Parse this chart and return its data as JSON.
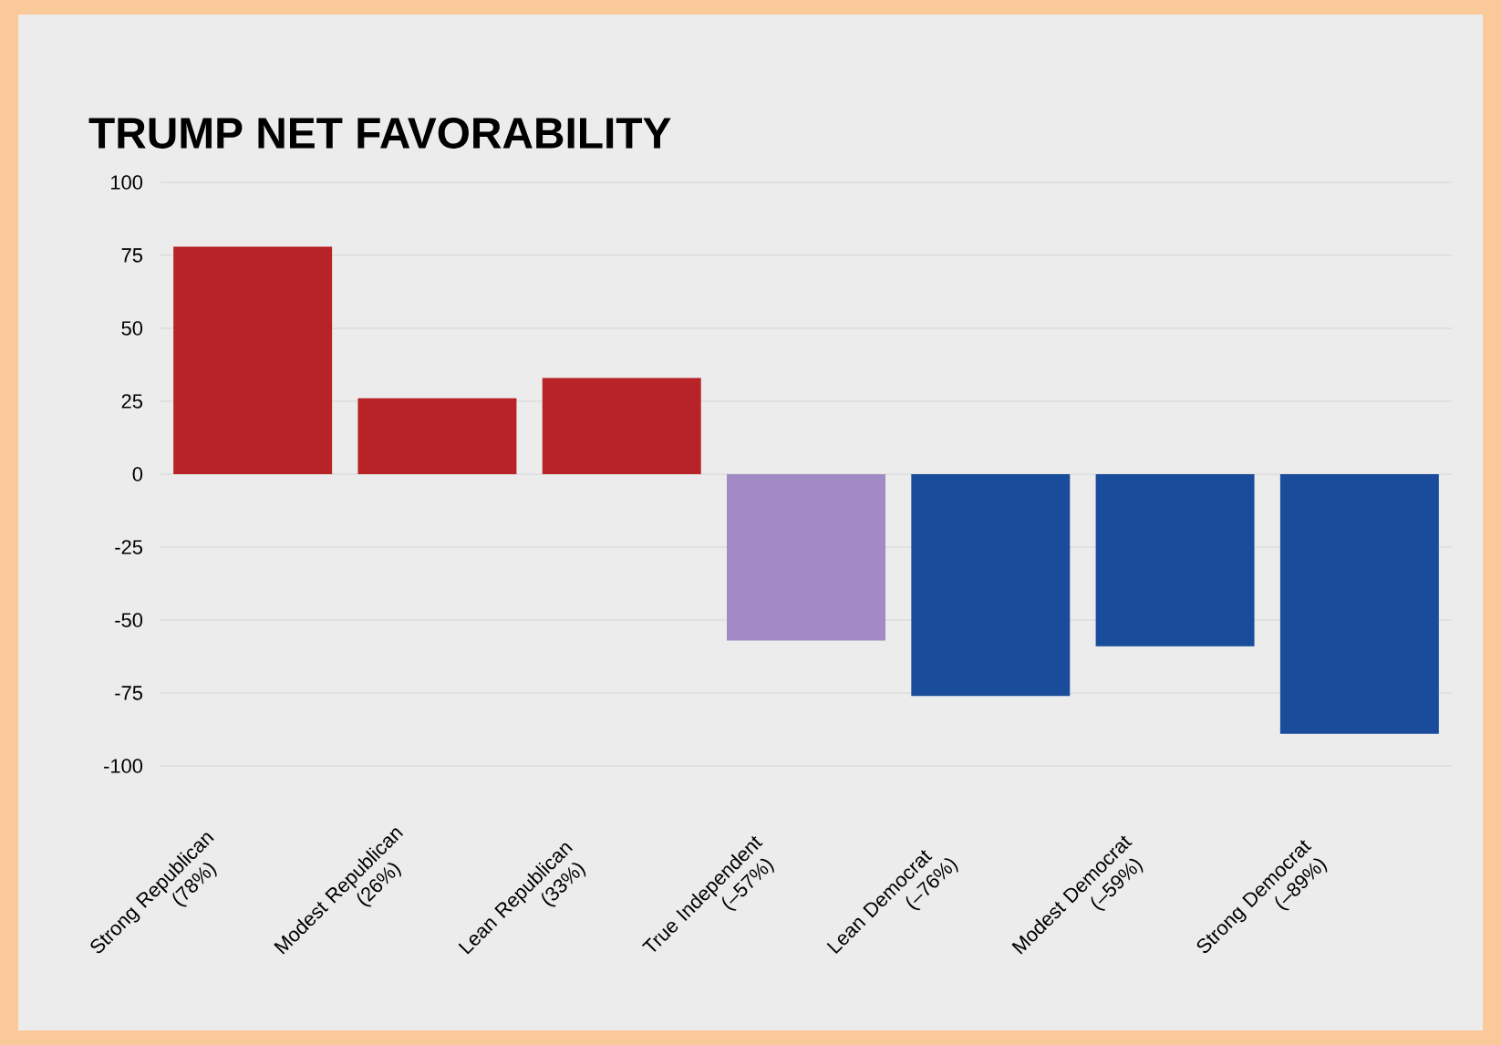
{
  "chart_data": {
    "type": "bar",
    "title": "TRUMP NET FAVORABILITY",
    "categories": [
      "Strong Republican (78%)",
      "Modest Republican (26%)",
      "Lean Republican (33%)",
      "True Independent (–57%)",
      "Lean Democrat (–76%)",
      "Modest Democrat (–59%)",
      "Strong Democrat (–89%)"
    ],
    "values": [
      78,
      26,
      33,
      -57,
      -76,
      -59,
      -89
    ],
    "colors": [
      "#b82327",
      "#b82327",
      "#b82327",
      "#a28bc4",
      "#1a4c9c",
      "#1a4c9c",
      "#1a4c9c"
    ],
    "ylim": [
      -100,
      100
    ],
    "yticks": [
      100,
      75,
      50,
      25,
      0,
      -25,
      -50,
      -75,
      -100
    ],
    "grid": "y"
  }
}
